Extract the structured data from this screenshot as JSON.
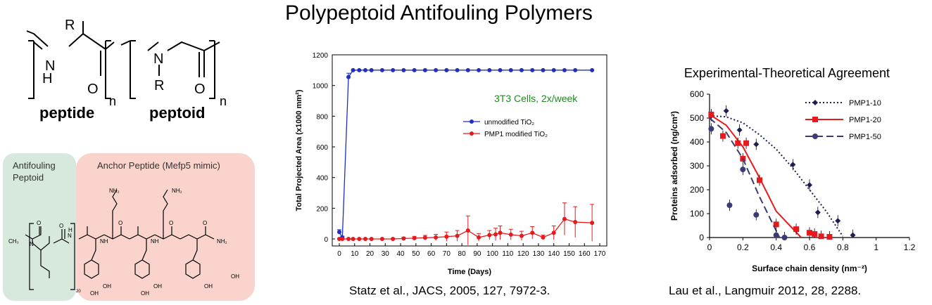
{
  "title": "Polypeptoid Antifouling Polymers",
  "structures": {
    "peptide": {
      "r_label": "R",
      "n_label": "N",
      "h_label": "H",
      "o_label": "O",
      "subscript": "n",
      "name": "peptide"
    },
    "peptoid": {
      "r_label": "R",
      "n_label": "N",
      "o_label": "O",
      "subscript": "n",
      "name": "peptoid"
    },
    "antifouling_box": {
      "label_line1": "Antifouling",
      "label_line2": "Peptoid",
      "color": "#d7e8dc"
    },
    "anchor_box": {
      "label": "Anchor Peptide (Mefp5 mimic)",
      "color": "#f9d3cc"
    },
    "molecule_labels": {
      "ch3": "CH₃",
      "n": "N",
      "nh": "NH",
      "h": "H",
      "nh2": "NH₂",
      "oh": "OH",
      "o": "O",
      "sub20": "20"
    }
  },
  "citations": {
    "left": "Statz et al., JACS, 2005, 127, 7972-3.",
    "right": "Lau et al., Langmuir 2012, 28, 2288."
  },
  "chart_data": [
    {
      "type": "line",
      "title": "",
      "annotation": "3T3 Cells, 2x/week",
      "annotation_color": "#1a8a1a",
      "xlabel": "Time (Days)",
      "ylabel": "Total Projected Area (x1000 mm²)",
      "xlim": [
        0,
        170
      ],
      "ylim": [
        0,
        1200
      ],
      "xticks": [
        0,
        10,
        20,
        30,
        40,
        50,
        60,
        70,
        80,
        90,
        100,
        110,
        120,
        130,
        140,
        150,
        160,
        170
      ],
      "yticks": [
        0,
        200,
        400,
        600,
        800,
        1000,
        1200
      ],
      "grid": false,
      "legend": "right",
      "series": [
        {
          "name": "unmodified TiO₂",
          "color": "#1f2fbf",
          "x": [
            0,
            2,
            6,
            9,
            13,
            17,
            21,
            28,
            35,
            42,
            49,
            56,
            63,
            70,
            77,
            84,
            91,
            98,
            105,
            112,
            119,
            126,
            133,
            140,
            147,
            154,
            165
          ],
          "y": [
            45,
            10,
            1055,
            1100,
            1100,
            1100,
            1100,
            1100,
            1100,
            1100,
            1100,
            1100,
            1100,
            1100,
            1100,
            1100,
            1100,
            1100,
            1100,
            1100,
            1100,
            1100,
            1100,
            1100,
            1100,
            1100,
            1100
          ],
          "err": [
            15,
            8,
            25,
            0,
            0,
            0,
            0,
            0,
            0,
            0,
            0,
            0,
            0,
            0,
            0,
            0,
            0,
            0,
            0,
            0,
            0,
            0,
            0,
            0,
            0,
            0,
            0
          ]
        },
        {
          "name": "PMP1 modified TiO₂",
          "color": "#e8191c",
          "x": [
            0,
            2,
            6,
            9,
            13,
            17,
            21,
            28,
            35,
            42,
            49,
            56,
            63,
            70,
            77,
            84,
            91,
            98,
            102,
            105,
            112,
            119,
            126,
            133,
            140,
            147,
            154,
            165
          ],
          "y": [
            0,
            0,
            0,
            0,
            0,
            0,
            0,
            0,
            0,
            3,
            5,
            8,
            10,
            15,
            20,
            55,
            10,
            25,
            30,
            40,
            28,
            20,
            40,
            10,
            40,
            130,
            110,
            105
          ],
          "err": [
            5,
            3,
            3,
            3,
            3,
            3,
            3,
            3,
            5,
            8,
            12,
            15,
            20,
            30,
            35,
            95,
            25,
            30,
            40,
            45,
            35,
            30,
            40,
            15,
            45,
            105,
            100,
            120
          ]
        }
      ]
    },
    {
      "type": "scatter",
      "title": "Experimental-Theoretical Agreement",
      "xlabel": "Surface chain density (nm⁻²)",
      "ylabel": "Proteins adsorbed (ng/cm²)",
      "xlim": [
        0,
        1.2
      ],
      "ylim": [
        0,
        600
      ],
      "xticks": [
        "0",
        "0.2",
        "0.4",
        "0.6",
        "0.8",
        "1",
        "1.2"
      ],
      "yticks": [
        "0",
        "100",
        "200",
        "300",
        "400",
        "500",
        "600"
      ],
      "grid": false,
      "legend": "top-right",
      "series": [
        {
          "name": "PMP1-10",
          "color": "#1f1f4f",
          "marker": "diamond",
          "line": "dotted",
          "x": [
            0.01,
            0.1,
            0.18,
            0.28,
            0.5,
            0.6,
            0.65,
            0.77,
            0.86
          ],
          "y": [
            510,
            530,
            450,
            390,
            305,
            220,
            105,
            70,
            10
          ],
          "fit_x": [
            0.0,
            0.1,
            0.2,
            0.3,
            0.4,
            0.5,
            0.6,
            0.7,
            0.8
          ],
          "fit_y": [
            510,
            505,
            480,
            430,
            370,
            290,
            200,
            110,
            5
          ]
        },
        {
          "name": "PMP1-20",
          "color": "#e8191c",
          "marker": "square",
          "line": "solid",
          "x": [
            0.01,
            0.08,
            0.17,
            0.2,
            0.22,
            0.3,
            0.4,
            0.52,
            0.6,
            0.63,
            0.67,
            0.72
          ],
          "y": [
            515,
            425,
            395,
            330,
            395,
            240,
            55,
            35,
            20,
            15,
            5,
            3
          ],
          "fit_x": [
            0.0,
            0.1,
            0.2,
            0.3,
            0.4,
            0.55
          ],
          "fit_y": [
            515,
            470,
            380,
            250,
            110,
            0
          ]
        },
        {
          "name": "PMP1-50",
          "color": "#3a3a7a",
          "marker": "circle",
          "line": "dashed",
          "x": [
            0.01,
            0.12,
            0.2,
            0.28,
            0.4,
            0.45
          ],
          "y": [
            455,
            135,
            285,
            95,
            10,
            0
          ],
          "fit_x": [
            0.0,
            0.1,
            0.2,
            0.3,
            0.42
          ],
          "fit_y": [
            500,
            440,
            330,
            170,
            0
          ]
        }
      ]
    }
  ]
}
